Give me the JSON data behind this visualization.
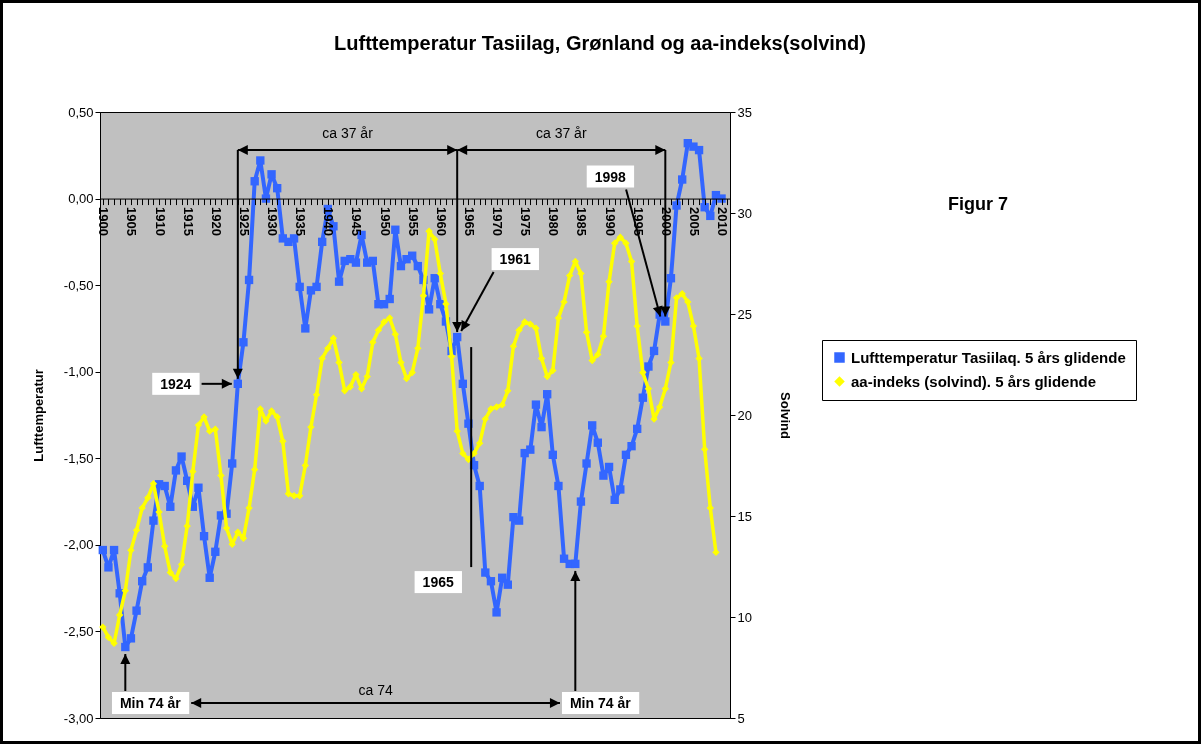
{
  "chart_data": {
    "type": "line",
    "title": "Lufttemperatur Tasiilag, Grønland og aa-indeks(solvind)",
    "ylabel": "Lufttemperatur",
    "y2label": "Solvind",
    "x": [
      1900,
      1901,
      1902,
      1903,
      1904,
      1905,
      1906,
      1907,
      1908,
      1909,
      1910,
      1911,
      1912,
      1913,
      1914,
      1915,
      1916,
      1917,
      1918,
      1919,
      1920,
      1921,
      1922,
      1923,
      1924,
      1925,
      1926,
      1927,
      1928,
      1929,
      1930,
      1931,
      1932,
      1933,
      1934,
      1935,
      1936,
      1937,
      1938,
      1939,
      1940,
      1941,
      1942,
      1943,
      1944,
      1945,
      1946,
      1947,
      1948,
      1949,
      1950,
      1951,
      1952,
      1953,
      1954,
      1955,
      1956,
      1957,
      1958,
      1959,
      1960,
      1961,
      1962,
      1963,
      1964,
      1965,
      1966,
      1967,
      1968,
      1969,
      1970,
      1971,
      1972,
      1973,
      1974,
      1975,
      1976,
      1977,
      1978,
      1979,
      1980,
      1981,
      1982,
      1983,
      1984,
      1985,
      1986,
      1987,
      1988,
      1989,
      1990,
      1991,
      1992,
      1993,
      1994,
      1995,
      1996,
      1997,
      1998,
      1999,
      2000,
      2001,
      2002,
      2003,
      2004,
      2005,
      2006,
      2007,
      2008,
      2009,
      2010
    ],
    "series": [
      {
        "name": "Lufttemperatur Tasiilaq. 5 års glidende",
        "color": "#3366ff",
        "marker": "square",
        "values": [
          -2.03,
          -2.13,
          -2.03,
          -2.28,
          -2.59,
          -2.54,
          -2.38,
          -2.21,
          -2.13,
          -1.86,
          -1.65,
          -1.66,
          -1.78,
          -1.57,
          -1.49,
          -1.63,
          -1.78,
          -1.67,
          -1.95,
          -2.19,
          -2.04,
          -1.83,
          -1.82,
          -1.53,
          -1.07,
          -0.83,
          -0.47,
          0.1,
          0.22,
          0.0,
          0.14,
          0.06,
          -0.23,
          -0.25,
          -0.23,
          -0.51,
          -0.75,
          -0.53,
          -0.51,
          -0.25,
          -0.06,
          -0.16,
          -0.48,
          -0.36,
          -0.35,
          -0.37,
          -0.21,
          -0.37,
          -0.36,
          -0.61,
          -0.61,
          -0.58,
          -0.18,
          -0.39,
          -0.35,
          -0.33,
          -0.39,
          -0.47,
          -0.64,
          -0.46,
          -0.61,
          -0.71,
          -0.88,
          -0.8,
          -1.07,
          -1.3,
          -1.54,
          -1.66,
          -2.16,
          -2.21,
          -2.39,
          -2.19,
          -2.23,
          -1.84,
          -1.86,
          -1.47,
          -1.45,
          -1.19,
          -1.32,
          -1.13,
          -1.48,
          -1.66,
          -2.08,
          -2.11,
          -2.11,
          -1.75,
          -1.53,
          -1.31,
          -1.41,
          -1.6,
          -1.55,
          -1.74,
          -1.68,
          -1.48,
          -1.43,
          -1.33,
          -1.15,
          -0.97,
          -0.88,
          -0.67,
          -0.71,
          -0.46,
          -0.04,
          0.11,
          0.32,
          0.3,
          0.28,
          -0.05,
          -0.1,
          0.02,
          0.0
        ]
      },
      {
        "name": "aa-indeks (solvind). 5 års glidende",
        "color": "#ffff00",
        "marker": "diamond",
        "axis": "y2",
        "x": [
          1900,
          1901,
          1902,
          1903,
          1904,
          1905,
          1906,
          1907,
          1908,
          1909,
          1910,
          1911,
          1912,
          1913,
          1914,
          1915,
          1916,
          1917,
          1918,
          1919,
          1920,
          1921,
          1922,
          1923,
          1924,
          1925,
          1926,
          1927,
          1928,
          1929,
          1930,
          1931,
          1932,
          1933,
          1934,
          1935,
          1936,
          1937,
          1938,
          1939,
          1940,
          1941,
          1942,
          1943,
          1944,
          1945,
          1946,
          1947,
          1948,
          1949,
          1950,
          1951,
          1952,
          1953,
          1954,
          1955,
          1956,
          1957,
          1958,
          1959,
          1960,
          1961,
          1962,
          1963,
          1964,
          1965,
          1966,
          1967,
          1968,
          1969,
          1970,
          1971,
          1972,
          1973,
          1974,
          1975,
          1976,
          1977,
          1978,
          1979,
          1980,
          1981,
          1982,
          1983,
          1984,
          1985,
          1986,
          1987,
          1988,
          1989,
          1990,
          1991,
          1992,
          1993,
          1994,
          1995,
          1996,
          1997,
          1998,
          1999,
          2000,
          2001,
          2002,
          2003,
          2004,
          2005,
          2006,
          2007,
          2008,
          2009
        ],
        "values": [
          9.5,
          9.0,
          8.7,
          10.1,
          11.3,
          13.3,
          14.3,
          15.4,
          15.9,
          16.6,
          15.2,
          13.5,
          12.2,
          11.9,
          12.6,
          14.5,
          17.2,
          19.5,
          19.9,
          19.2,
          19.3,
          17.0,
          14.4,
          13.6,
          14.2,
          13.9,
          15.4,
          17.3,
          20.3,
          19.7,
          20.2,
          19.9,
          18.7,
          16.1,
          16.0,
          16.0,
          17.5,
          19.4,
          21.0,
          22.8,
          23.3,
          23.8,
          22.6,
          21.2,
          21.4,
          22.0,
          21.3,
          21.9,
          23.6,
          24.2,
          24.6,
          24.8,
          24.0,
          22.6,
          21.8,
          22.1,
          23.3,
          25.9,
          29.1,
          28.7,
          27.0,
          25.5,
          22.9,
          19.2,
          18.1,
          17.8,
          18.1,
          18.6,
          19.8,
          20.3,
          20.4,
          20.5,
          21.2,
          23.4,
          24.2,
          24.6,
          24.5,
          24.3,
          22.8,
          21.9,
          22.2,
          24.8,
          25.6,
          26.9,
          27.6,
          27.0,
          24.1,
          22.7,
          23.0,
          23.9,
          26.6,
          28.5,
          28.8,
          28.5,
          27.6,
          24.4,
          22.1,
          21.3,
          19.8,
          20.4,
          21.3,
          22.6,
          25.8,
          26.0,
          25.6,
          24.4,
          22.8,
          18.3,
          15.4,
          13.2
        ]
      }
    ],
    "xlim": [
      1899.5,
      2011.5
    ],
    "xticks": [
      1900,
      {
        "value": 1901,
        "label": null
      },
      {
        "value": 1902,
        "label": null
      },
      {
        "value": 1903,
        "label": null
      },
      {
        "value": 1904,
        "label": null
      },
      1905,
      {
        "value": 1906,
        "label": null
      },
      {
        "value": 1907,
        "label": null
      },
      {
        "value": 1908,
        "label": null
      },
      {
        "value": 1909,
        "label": null
      },
      1910,
      {
        "value": 1911,
        "label": null
      },
      {
        "value": 1912,
        "label": null
      },
      {
        "value": 1913,
        "label": null
      },
      {
        "value": 1914,
        "label": null
      },
      1915,
      {
        "value": 1916,
        "label": null
      },
      {
        "value": 1917,
        "label": null
      },
      {
        "value": 1918,
        "label": null
      },
      {
        "value": 1919,
        "label": null
      },
      1920,
      {
        "value": 1921,
        "label": null
      },
      {
        "value": 1922,
        "label": null
      },
      {
        "value": 1923,
        "label": null
      },
      {
        "value": 1924,
        "label": null
      },
      1925,
      {
        "value": 1926,
        "label": null
      },
      {
        "value": 1927,
        "label": null
      },
      {
        "value": 1928,
        "label": null
      },
      {
        "value": 1929,
        "label": null
      },
      1930,
      {
        "value": 1931,
        "label": null
      },
      {
        "value": 1932,
        "label": null
      },
      {
        "value": 1933,
        "label": null
      },
      {
        "value": 1934,
        "label": null
      },
      1935,
      {
        "value": 1936,
        "label": null
      },
      {
        "value": 1937,
        "label": null
      },
      {
        "value": 1938,
        "label": null
      },
      {
        "value": 1939,
        "label": null
      },
      1940,
      {
        "value": 1941,
        "label": null
      },
      {
        "value": 1942,
        "label": null
      },
      {
        "value": 1943,
        "label": null
      },
      {
        "value": 1944,
        "label": null
      },
      1945,
      {
        "value": 1946,
        "label": null
      },
      {
        "value": 1947,
        "label": null
      },
      {
        "value": 1948,
        "label": null
      },
      {
        "value": 1949,
        "label": null
      },
      1950,
      {
        "value": 1951,
        "label": null
      },
      {
        "value": 1952,
        "label": null
      },
      {
        "value": 1953,
        "label": null
      },
      {
        "value": 1954,
        "label": null
      },
      1955,
      {
        "value": 1956,
        "label": null
      },
      {
        "value": 1957,
        "label": null
      },
      {
        "value": 1958,
        "label": null
      },
      {
        "value": 1959,
        "label": null
      },
      1960,
      {
        "value": 1961,
        "label": null
      },
      {
        "value": 1962,
        "label": null
      },
      {
        "value": 1963,
        "label": null
      },
      {
        "value": 1964,
        "label": null
      },
      1965,
      {
        "value": 1966,
        "label": null
      },
      {
        "value": 1967,
        "label": null
      },
      {
        "value": 1968,
        "label": null
      },
      {
        "value": 1969,
        "label": null
      },
      1970,
      {
        "value": 1971,
        "label": null
      },
      {
        "value": 1972,
        "label": null
      },
      {
        "value": 1973,
        "label": null
      },
      {
        "value": 1974,
        "label": null
      },
      1975,
      {
        "value": 1976,
        "label": null
      },
      {
        "value": 1977,
        "label": null
      },
      {
        "value": 1978,
        "label": null
      },
      {
        "value": 1979,
        "label": null
      },
      1980,
      {
        "value": 1981,
        "label": null
      },
      {
        "value": 1982,
        "label": null
      },
      {
        "value": 1983,
        "label": null
      },
      {
        "value": 1984,
        "label": null
      },
      1985,
      {
        "value": 1986,
        "label": null
      },
      {
        "value": 1987,
        "label": null
      },
      {
        "value": 1988,
        "label": null
      },
      {
        "value": 1989,
        "label": null
      },
      1990,
      {
        "value": 1991,
        "label": null
      },
      {
        "value": 1992,
        "label": null
      },
      {
        "value": 1993,
        "label": null
      },
      {
        "value": 1994,
        "label": null
      },
      1995,
      {
        "value": 1996,
        "label": null
      },
      {
        "value": 1997,
        "label": null
      },
      {
        "value": 1998,
        "label": null
      },
      {
        "value": 1999,
        "label": null
      },
      2000,
      {
        "value": 2001,
        "label": null
      },
      {
        "value": 2002,
        "label": null
      },
      {
        "value": 2003,
        "label": null
      },
      {
        "value": 2004,
        "label": null
      },
      2005,
      {
        "value": 2006,
        "label": null
      },
      {
        "value": 2007,
        "label": null
      },
      {
        "value": 2008,
        "label": null
      },
      {
        "value": 2009,
        "label": null
      },
      2010,
      {
        "value": 2011,
        "label": null
      }
    ],
    "ylim": [
      -3.0,
      0.5
    ],
    "yticks": [
      {
        "value": 0.5,
        "label": "0,50"
      },
      {
        "value": 0.0,
        "label": "0,00"
      },
      {
        "value": -0.5,
        "label": "-0,50"
      },
      {
        "value": -1.0,
        "label": "-1,00"
      },
      {
        "value": -1.5,
        "label": "-1,50"
      },
      {
        "value": -2.0,
        "label": "-2,00"
      },
      {
        "value": -2.5,
        "label": "-2,50"
      },
      {
        "value": -3.0,
        "label": "-3,00"
      }
    ],
    "y2lim": [
      5,
      35
    ],
    "y2ticks": [
      5,
      10,
      15,
      20,
      25,
      30,
      35
    ],
    "legend": "right",
    "annotations": [
      "ca 37 år",
      "ca 37 år",
      "ca 74",
      {
        "text": "1924",
        "x": 1924,
        "y": -1.07
      },
      {
        "text": "1961",
        "x": 1963,
        "y": -0.8
      },
      "1965",
      {
        "text": "1998",
        "x": 2000,
        "y": -0.71
      },
      {
        "text": "Min 74 år",
        "x": 1904,
        "y": -2.59
      },
      {
        "text": "Min 74 år",
        "x": 1984,
        "y": -2.11
      },
      "Figur 7"
    ]
  }
}
